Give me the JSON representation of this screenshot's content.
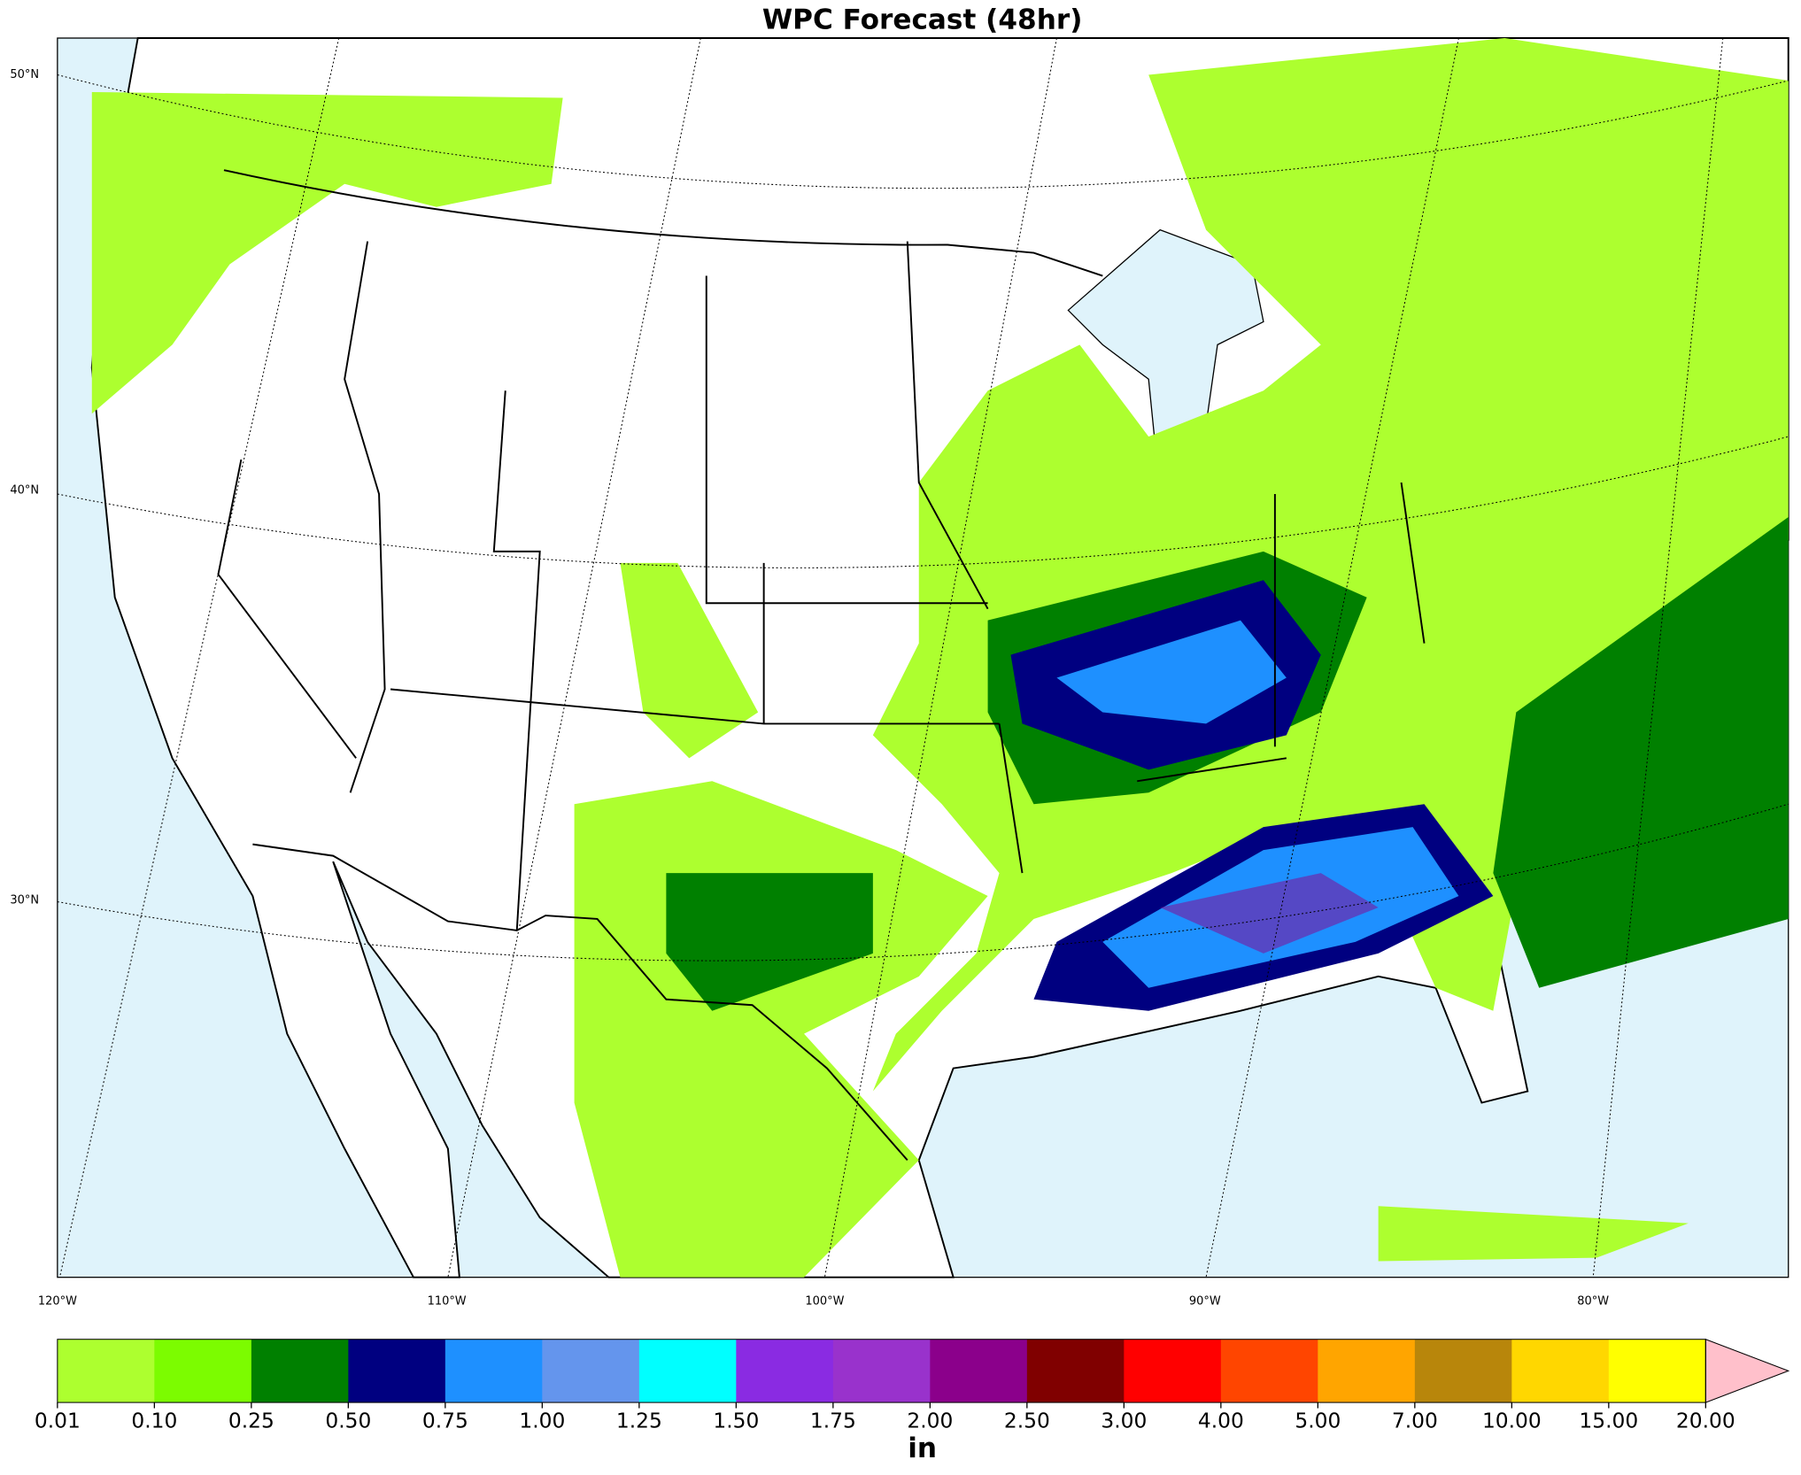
{
  "title": "WPC Forecast (48hr)",
  "map": {
    "lat_labels": [
      "50°N",
      "40°N",
      "30°N"
    ],
    "lon_labels": [
      "120°W",
      "110°W",
      "100°W",
      "90°W",
      "80°W"
    ]
  },
  "colorbar": {
    "ticks": [
      {
        "value": 0.01,
        "label": "0.01"
      },
      {
        "value": 0.1,
        "label": "0.10"
      },
      {
        "value": 0.25,
        "label": "0.25"
      },
      {
        "value": 0.5,
        "label": "0.50"
      },
      {
        "value": 0.75,
        "label": "0.75"
      },
      {
        "value": 1,
        "label": "1.00"
      },
      {
        "value": 1.25,
        "label": "1.25"
      },
      {
        "value": 1.5,
        "label": "1.50"
      },
      {
        "value": 1.75,
        "label": "1.75"
      },
      {
        "value": 2,
        "label": "2.00"
      },
      {
        "value": 2.5,
        "label": "2.50"
      },
      {
        "value": 3,
        "label": "3.00"
      },
      {
        "value": 4,
        "label": "4.00"
      },
      {
        "value": 5,
        "label": "5.00"
      },
      {
        "value": 7,
        "label": "7.00"
      },
      {
        "value": 10,
        "label": "10.00"
      },
      {
        "value": 15,
        "label": "15.00"
      },
      {
        "value": 20,
        "label": "20.00"
      }
    ],
    "colors": [
      "#adff2f",
      "#7cfc00",
      "#008000",
      "#000080",
      "#1e90ff",
      "#6495ed",
      "#00ffff",
      "#8a2be2",
      "#9932cc",
      "#8b008b",
      "#800000",
      "#ff0000",
      "#ff4500",
      "#ffa500",
      "#b8860b",
      "#ffd700",
      "#ffff00"
    ],
    "extend_color": "#ffc0cb",
    "label": "in"
  }
}
